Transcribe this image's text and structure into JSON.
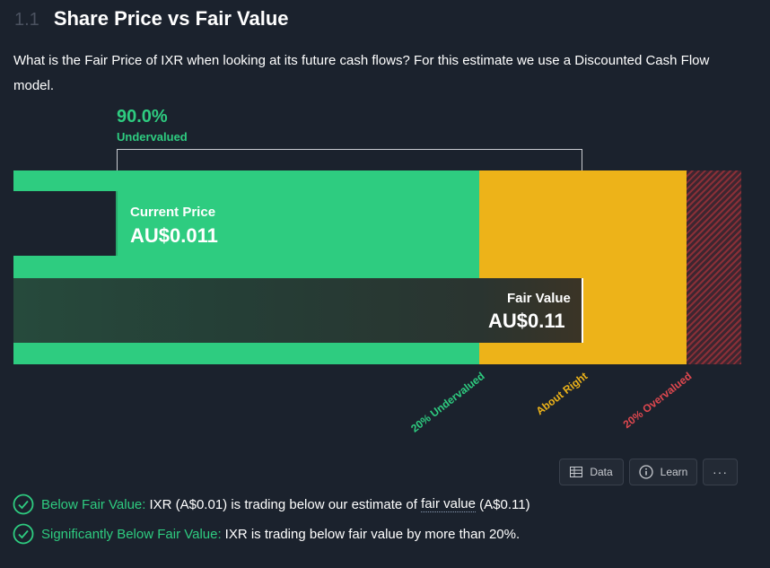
{
  "header": {
    "section_number": "1.1",
    "title": "Share Price vs Fair Value"
  },
  "description": "What is the Fair Price of IXR when looking at its future cash flows? For this estimate we use a Discounted Cash Flow model.",
  "chart_data": {
    "type": "bar",
    "title": "Share Price vs Fair Value",
    "currency": "AU$",
    "current_price": {
      "label": "Current Price",
      "display": "AU$0.011",
      "value": 0.011
    },
    "fair_value": {
      "label": "Fair Value",
      "display": "AU$0.11",
      "value": 0.11
    },
    "discount": {
      "display": "90.0%",
      "value": 90.0,
      "label": "Undervalued"
    },
    "zones": [
      {
        "label": "20% Undervalued",
        "color": "#2ecc80"
      },
      {
        "label": "About Right",
        "color": "#edb319"
      },
      {
        "label": "20% Overvalued",
        "color": "#e0484f"
      }
    ],
    "colors": {
      "green": "#2ecc80",
      "yellow": "#edb319",
      "red": "#e0484f"
    }
  },
  "toolbar": {
    "data_label": "Data",
    "learn_label": "Learn",
    "more_label": "···"
  },
  "checks": [
    {
      "title": "Below Fair Value:",
      "text_before": "IXR (A$0.01) is trading below our estimate of",
      "link": "fair value",
      "text_after": "(A$0.11)",
      "icon": "check-circle-icon"
    },
    {
      "title": "Significantly Below Fair Value:",
      "text": "IXR is trading below fair value by more than 20%.",
      "icon": "check-circle-icon"
    }
  ]
}
